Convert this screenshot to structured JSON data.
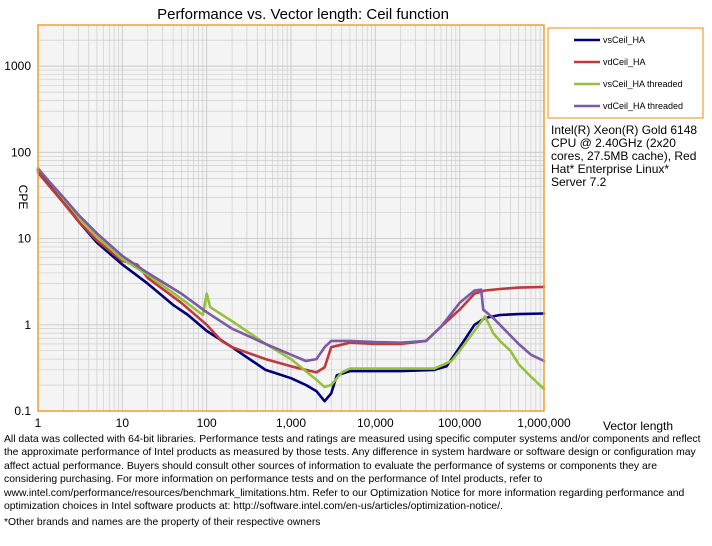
{
  "chart_data": {
    "type": "line",
    "title": "Performance vs. Vector length: Ceil function",
    "xlabel": "Vector length",
    "ylabel": "CPE",
    "x_scale": "log",
    "y_scale": "log",
    "xlim": [
      1,
      1000000
    ],
    "ylim": [
      0.1,
      3000
    ],
    "grid": true,
    "legend_position": "right",
    "x_ticks": [
      {
        "value": 1,
        "label": "1"
      },
      {
        "value": 10,
        "label": "10"
      },
      {
        "value": 100,
        "label": "100"
      },
      {
        "value": 1000,
        "label": "1,000"
      },
      {
        "value": 10000,
        "label": "10,000"
      },
      {
        "value": 100000,
        "label": "100,000"
      },
      {
        "value": 1000000,
        "label": "1,000,000"
      }
    ],
    "y_ticks": [
      {
        "value": 0.1,
        "label": "0.1"
      },
      {
        "value": 1,
        "label": "1"
      },
      {
        "value": 10,
        "label": "10"
      },
      {
        "value": 100,
        "label": "100"
      },
      {
        "value": 1000,
        "label": "1000"
      }
    ],
    "series": [
      {
        "name": "vsCeil_HA",
        "color": "#00007a",
        "points": [
          [
            1,
            62
          ],
          [
            2,
            27
          ],
          [
            3,
            16
          ],
          [
            5,
            9
          ],
          [
            10,
            5
          ],
          [
            20,
            3
          ],
          [
            40,
            1.7
          ],
          [
            60,
            1.3
          ],
          [
            100,
            0.85
          ],
          [
            200,
            0.55
          ],
          [
            300,
            0.42
          ],
          [
            500,
            0.3
          ],
          [
            1000,
            0.24
          ],
          [
            1500,
            0.2
          ],
          [
            2000,
            0.17
          ],
          [
            2500,
            0.13
          ],
          [
            3000,
            0.16
          ],
          [
            3500,
            0.26
          ],
          [
            5000,
            0.29
          ],
          [
            10000,
            0.29
          ],
          [
            20000,
            0.29
          ],
          [
            50000,
            0.3
          ],
          [
            70000,
            0.33
          ],
          [
            100000,
            0.55
          ],
          [
            150000,
            1.0
          ],
          [
            200000,
            1.2
          ],
          [
            300000,
            1.3
          ],
          [
            500000,
            1.33
          ],
          [
            1000000,
            1.35
          ]
        ]
      },
      {
        "name": "vdCeil_HA",
        "color": "#c0393b",
        "points": [
          [
            1,
            58
          ],
          [
            2,
            26
          ],
          [
            3,
            16
          ],
          [
            5,
            9.5
          ],
          [
            10,
            5.5
          ],
          [
            15,
            5
          ],
          [
            20,
            3.5
          ],
          [
            50,
            1.8
          ],
          [
            100,
            1.0
          ],
          [
            150,
            0.65
          ],
          [
            200,
            0.55
          ],
          [
            500,
            0.4
          ],
          [
            1000,
            0.33
          ],
          [
            2000,
            0.28
          ],
          [
            2500,
            0.32
          ],
          [
            3000,
            0.55
          ],
          [
            5000,
            0.62
          ],
          [
            10000,
            0.6
          ],
          [
            20000,
            0.6
          ],
          [
            40000,
            0.65
          ],
          [
            60000,
            0.95
          ],
          [
            100000,
            1.5
          ],
          [
            150000,
            2.3
          ],
          [
            200000,
            2.5
          ],
          [
            300000,
            2.6
          ],
          [
            500000,
            2.7
          ],
          [
            1000000,
            2.75
          ]
        ]
      },
      {
        "name": "vsCeil_HA threaded",
        "color": "#97c13b",
        "points": [
          [
            1,
            66
          ],
          [
            2,
            29
          ],
          [
            3,
            18
          ],
          [
            5,
            10.5
          ],
          [
            10,
            5.8
          ],
          [
            20,
            3.8
          ],
          [
            50,
            2.0
          ],
          [
            90,
            1.3
          ],
          [
            100,
            2.3
          ],
          [
            110,
            1.6
          ],
          [
            200,
            1.1
          ],
          [
            500,
            0.6
          ],
          [
            1000,
            0.4
          ],
          [
            2000,
            0.23
          ],
          [
            2500,
            0.19
          ],
          [
            3000,
            0.2
          ],
          [
            4000,
            0.28
          ],
          [
            5000,
            0.31
          ],
          [
            10000,
            0.31
          ],
          [
            30000,
            0.31
          ],
          [
            50000,
            0.31
          ],
          [
            80000,
            0.38
          ],
          [
            100000,
            0.5
          ],
          [
            150000,
            0.85
          ],
          [
            200000,
            1.25
          ],
          [
            250000,
            0.8
          ],
          [
            300000,
            0.65
          ],
          [
            400000,
            0.5
          ],
          [
            500000,
            0.35
          ],
          [
            700000,
            0.25
          ],
          [
            1000000,
            0.18
          ]
        ]
      },
      {
        "name": "vdCeil_HA threaded",
        "color": "#7c5aa6",
        "points": [
          [
            1,
            64
          ],
          [
            2,
            30
          ],
          [
            3,
            19
          ],
          [
            5,
            11.5
          ],
          [
            10,
            6.3
          ],
          [
            20,
            4
          ],
          [
            50,
            2.3
          ],
          [
            100,
            1.4
          ],
          [
            200,
            0.9
          ],
          [
            500,
            0.6
          ],
          [
            1000,
            0.45
          ],
          [
            1500,
            0.38
          ],
          [
            2000,
            0.4
          ],
          [
            2500,
            0.55
          ],
          [
            3000,
            0.65
          ],
          [
            5000,
            0.65
          ],
          [
            10000,
            0.63
          ],
          [
            20000,
            0.62
          ],
          [
            40000,
            0.65
          ],
          [
            60000,
            0.95
          ],
          [
            100000,
            1.8
          ],
          [
            150000,
            2.5
          ],
          [
            180000,
            2.55
          ],
          [
            190000,
            1.5
          ],
          [
            250000,
            1.2
          ],
          [
            300000,
            1.0
          ],
          [
            500000,
            0.6
          ],
          [
            700000,
            0.45
          ],
          [
            1000000,
            0.38
          ]
        ]
      }
    ]
  },
  "annotations": {
    "cpu_note": "Intel(R) Xeon(R) Gold 6148 CPU @ 2.40GHz (2x20 cores, 27.5MB cache), Red Hat* Enterprise Linux* Server 7.2",
    "disclaimer": "All data was collected with 64-bit libraries. Performance tests and ratings are measured using specific computer systems and/or components and reflect the approximate performance of Intel products as measured by those tests. Any difference in system hardware or software design or configuration may affect actual performance. Buyers should consult other sources of information to evaluate the performance of systems or components they are considering purchasing. For more information on performance tests and on the performance of Intel products, refer to www.intel.com/performance/resources/benchmark_limitations.htm. Refer to our Optimization Notice for more information regarding performance and optimization choices in Intel software products at: http://software.intel.com/en-us/articles/optimization-notice/.",
    "footnote": "*Other brands and names are the property of their respective owners"
  },
  "colors": {
    "frame": "#f0a030",
    "grid": "#c8c8c8",
    "plot_background": "#f4f4f4"
  }
}
